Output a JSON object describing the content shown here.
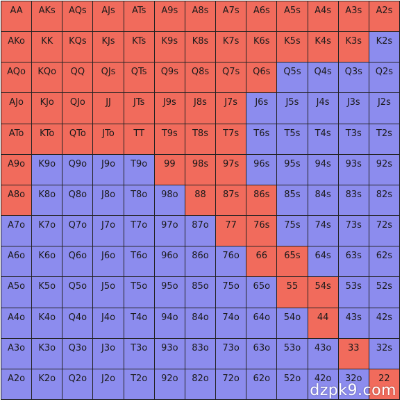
{
  "colors": {
    "raise": "#F16B5C",
    "fold": "#8C8CEE"
  },
  "grid": {
    "rows": [
      [
        [
          "AA",
          "r"
        ],
        [
          "AKs",
          "r"
        ],
        [
          "AQs",
          "r"
        ],
        [
          "AJs",
          "r"
        ],
        [
          "ATs",
          "r"
        ],
        [
          "A9s",
          "r"
        ],
        [
          "A8s",
          "r"
        ],
        [
          "A7s",
          "r"
        ],
        [
          "A6s",
          "r"
        ],
        [
          "A5s",
          "r"
        ],
        [
          "A4s",
          "r"
        ],
        [
          "A3s",
          "r"
        ],
        [
          "A2s",
          "r"
        ]
      ],
      [
        [
          "AKo",
          "r"
        ],
        [
          "KK",
          "r"
        ],
        [
          "KQs",
          "r"
        ],
        [
          "KJs",
          "r"
        ],
        [
          "KTs",
          "r"
        ],
        [
          "K9s",
          "r"
        ],
        [
          "K8s",
          "r"
        ],
        [
          "K7s",
          "r"
        ],
        [
          "K6s",
          "r"
        ],
        [
          "K5s",
          "r"
        ],
        [
          "K4s",
          "r"
        ],
        [
          "K3s",
          "r"
        ],
        [
          "K2s",
          "f"
        ]
      ],
      [
        [
          "AQo",
          "r"
        ],
        [
          "KQo",
          "r"
        ],
        [
          "QQ",
          "r"
        ],
        [
          "QJs",
          "r"
        ],
        [
          "QTs",
          "r"
        ],
        [
          "Q9s",
          "r"
        ],
        [
          "Q8s",
          "r"
        ],
        [
          "Q7s",
          "r"
        ],
        [
          "Q6s",
          "r"
        ],
        [
          "Q5s",
          "f"
        ],
        [
          "Q4s",
          "f"
        ],
        [
          "Q3s",
          "f"
        ],
        [
          "Q2s",
          "f"
        ]
      ],
      [
        [
          "AJo",
          "r"
        ],
        [
          "KJo",
          "r"
        ],
        [
          "QJo",
          "r"
        ],
        [
          "JJ",
          "r"
        ],
        [
          "JTs",
          "r"
        ],
        [
          "J9s",
          "r"
        ],
        [
          "J8s",
          "r"
        ],
        [
          "J7s",
          "r"
        ],
        [
          "J6s",
          "f"
        ],
        [
          "J5s",
          "f"
        ],
        [
          "J4s",
          "f"
        ],
        [
          "J3s",
          "f"
        ],
        [
          "J2s",
          "f"
        ]
      ],
      [
        [
          "ATo",
          "r"
        ],
        [
          "KTo",
          "r"
        ],
        [
          "QTo",
          "r"
        ],
        [
          "JTo",
          "r"
        ],
        [
          "TT",
          "r"
        ],
        [
          "T9s",
          "r"
        ],
        [
          "T8s",
          "r"
        ],
        [
          "T7s",
          "r"
        ],
        [
          "T6s",
          "f"
        ],
        [
          "T5s",
          "f"
        ],
        [
          "T4s",
          "f"
        ],
        [
          "T3s",
          "f"
        ],
        [
          "T2s",
          "f"
        ]
      ],
      [
        [
          "A9o",
          "r"
        ],
        [
          "K9o",
          "f"
        ],
        [
          "Q9o",
          "f"
        ],
        [
          "J9o",
          "f"
        ],
        [
          "T9o",
          "f"
        ],
        [
          "99",
          "r"
        ],
        [
          "98s",
          "r"
        ],
        [
          "97s",
          "r"
        ],
        [
          "96s",
          "f"
        ],
        [
          "95s",
          "f"
        ],
        [
          "94s",
          "f"
        ],
        [
          "93s",
          "f"
        ],
        [
          "92s",
          "f"
        ]
      ],
      [
        [
          "A8o",
          "r"
        ],
        [
          "K8o",
          "f"
        ],
        [
          "Q8o",
          "f"
        ],
        [
          "J8o",
          "f"
        ],
        [
          "T8o",
          "f"
        ],
        [
          "98o",
          "f"
        ],
        [
          "88",
          "r"
        ],
        [
          "87s",
          "r"
        ],
        [
          "86s",
          "r"
        ],
        [
          "85s",
          "f"
        ],
        [
          "84s",
          "f"
        ],
        [
          "83s",
          "f"
        ],
        [
          "82s",
          "f"
        ]
      ],
      [
        [
          "A7o",
          "f"
        ],
        [
          "K7o",
          "f"
        ],
        [
          "Q7o",
          "f"
        ],
        [
          "J7o",
          "f"
        ],
        [
          "T7o",
          "f"
        ],
        [
          "97o",
          "f"
        ],
        [
          "87o",
          "f"
        ],
        [
          "77",
          "r"
        ],
        [
          "76s",
          "r"
        ],
        [
          "75s",
          "f"
        ],
        [
          "74s",
          "f"
        ],
        [
          "73s",
          "f"
        ],
        [
          "72s",
          "f"
        ]
      ],
      [
        [
          "A6o",
          "f"
        ],
        [
          "K6o",
          "f"
        ],
        [
          "Q6o",
          "f"
        ],
        [
          "J6o",
          "f"
        ],
        [
          "T6o",
          "f"
        ],
        [
          "96o",
          "f"
        ],
        [
          "86o",
          "f"
        ],
        [
          "76o",
          "f"
        ],
        [
          "66",
          "r"
        ],
        [
          "65s",
          "r"
        ],
        [
          "64s",
          "f"
        ],
        [
          "63s",
          "f"
        ],
        [
          "62s",
          "f"
        ]
      ],
      [
        [
          "A5o",
          "f"
        ],
        [
          "K5o",
          "f"
        ],
        [
          "Q5o",
          "f"
        ],
        [
          "J5o",
          "f"
        ],
        [
          "T5o",
          "f"
        ],
        [
          "95o",
          "f"
        ],
        [
          "85o",
          "f"
        ],
        [
          "75o",
          "f"
        ],
        [
          "65o",
          "f"
        ],
        [
          "55",
          "r"
        ],
        [
          "54s",
          "r"
        ],
        [
          "53s",
          "f"
        ],
        [
          "52s",
          "f"
        ]
      ],
      [
        [
          "A4o",
          "f"
        ],
        [
          "K4o",
          "f"
        ],
        [
          "Q4o",
          "f"
        ],
        [
          "J4o",
          "f"
        ],
        [
          "T4o",
          "f"
        ],
        [
          "94o",
          "f"
        ],
        [
          "84o",
          "f"
        ],
        [
          "74o",
          "f"
        ],
        [
          "64o",
          "f"
        ],
        [
          "54o",
          "f"
        ],
        [
          "44",
          "r"
        ],
        [
          "43s",
          "f"
        ],
        [
          "42s",
          "f"
        ]
      ],
      [
        [
          "A3o",
          "f"
        ],
        [
          "K3o",
          "f"
        ],
        [
          "Q3o",
          "f"
        ],
        [
          "J3o",
          "f"
        ],
        [
          "T3o",
          "f"
        ],
        [
          "93o",
          "f"
        ],
        [
          "83o",
          "f"
        ],
        [
          "73o",
          "f"
        ],
        [
          "63o",
          "f"
        ],
        [
          "53o",
          "f"
        ],
        [
          "43o",
          "f"
        ],
        [
          "33",
          "r"
        ],
        [
          "32s",
          "f"
        ]
      ],
      [
        [
          "A2o",
          "f"
        ],
        [
          "K2o",
          "f"
        ],
        [
          "Q2o",
          "f"
        ],
        [
          "J2o",
          "f"
        ],
        [
          "T2o",
          "f"
        ],
        [
          "92o",
          "f"
        ],
        [
          "82o",
          "f"
        ],
        [
          "72o",
          "f"
        ],
        [
          "62o",
          "f"
        ],
        [
          "52o",
          "f"
        ],
        [
          "42o",
          "f"
        ],
        [
          "32o",
          "f"
        ],
        [
          "22",
          "r"
        ]
      ]
    ]
  },
  "watermark": "dzpk9.com"
}
